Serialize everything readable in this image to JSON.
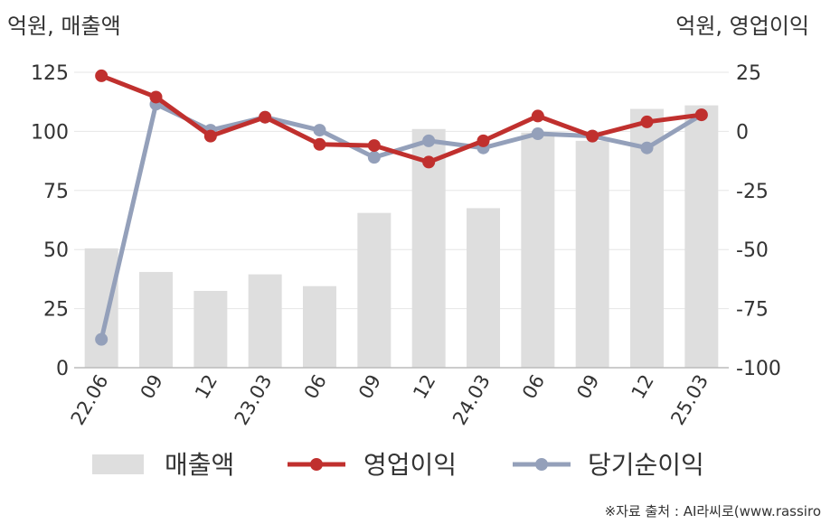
{
  "chart_data": {
    "type": "bar",
    "left_axis_title": "억원, 매출액",
    "right_axis_title": "억원, 영업이익",
    "categories": [
      "22.06",
      "09",
      "12",
      "23.03",
      "06",
      "09",
      "12",
      "24.03",
      "06",
      "09",
      "12",
      "25.03"
    ],
    "left_ylim": [
      0,
      125
    ],
    "left_ticks": [
      0,
      25,
      50,
      75,
      100,
      125
    ],
    "right_ylim": [
      -100,
      25
    ],
    "right_ticks": [
      -100,
      -75,
      -50,
      -25,
      0,
      25
    ],
    "grid": true,
    "legend_position": "bottom",
    "series": [
      {
        "name": "매출액",
        "kind": "bar",
        "axis": "left",
        "color": "#dedede",
        "values": [
          50.5,
          40.5,
          32.5,
          39.5,
          34.5,
          65.5,
          101,
          67.5,
          99.5,
          96,
          109.5,
          111
        ]
      },
      {
        "name": "영업이익",
        "kind": "line",
        "axis": "right",
        "color": "#c0302e",
        "values": [
          23.5,
          14.5,
          -2,
          6,
          -5.5,
          -6,
          -13,
          -4,
          6.5,
          -2,
          4,
          7
        ]
      },
      {
        "name": "당기순이익",
        "kind": "line",
        "axis": "right",
        "color": "#94a0ba",
        "values": [
          -88,
          11.5,
          0.5,
          6,
          0.5,
          -11,
          -4,
          -7,
          -1,
          -2,
          -7,
          7
        ]
      }
    ]
  },
  "source": "※자료 출처 : AI라씨로(www.rassiro"
}
